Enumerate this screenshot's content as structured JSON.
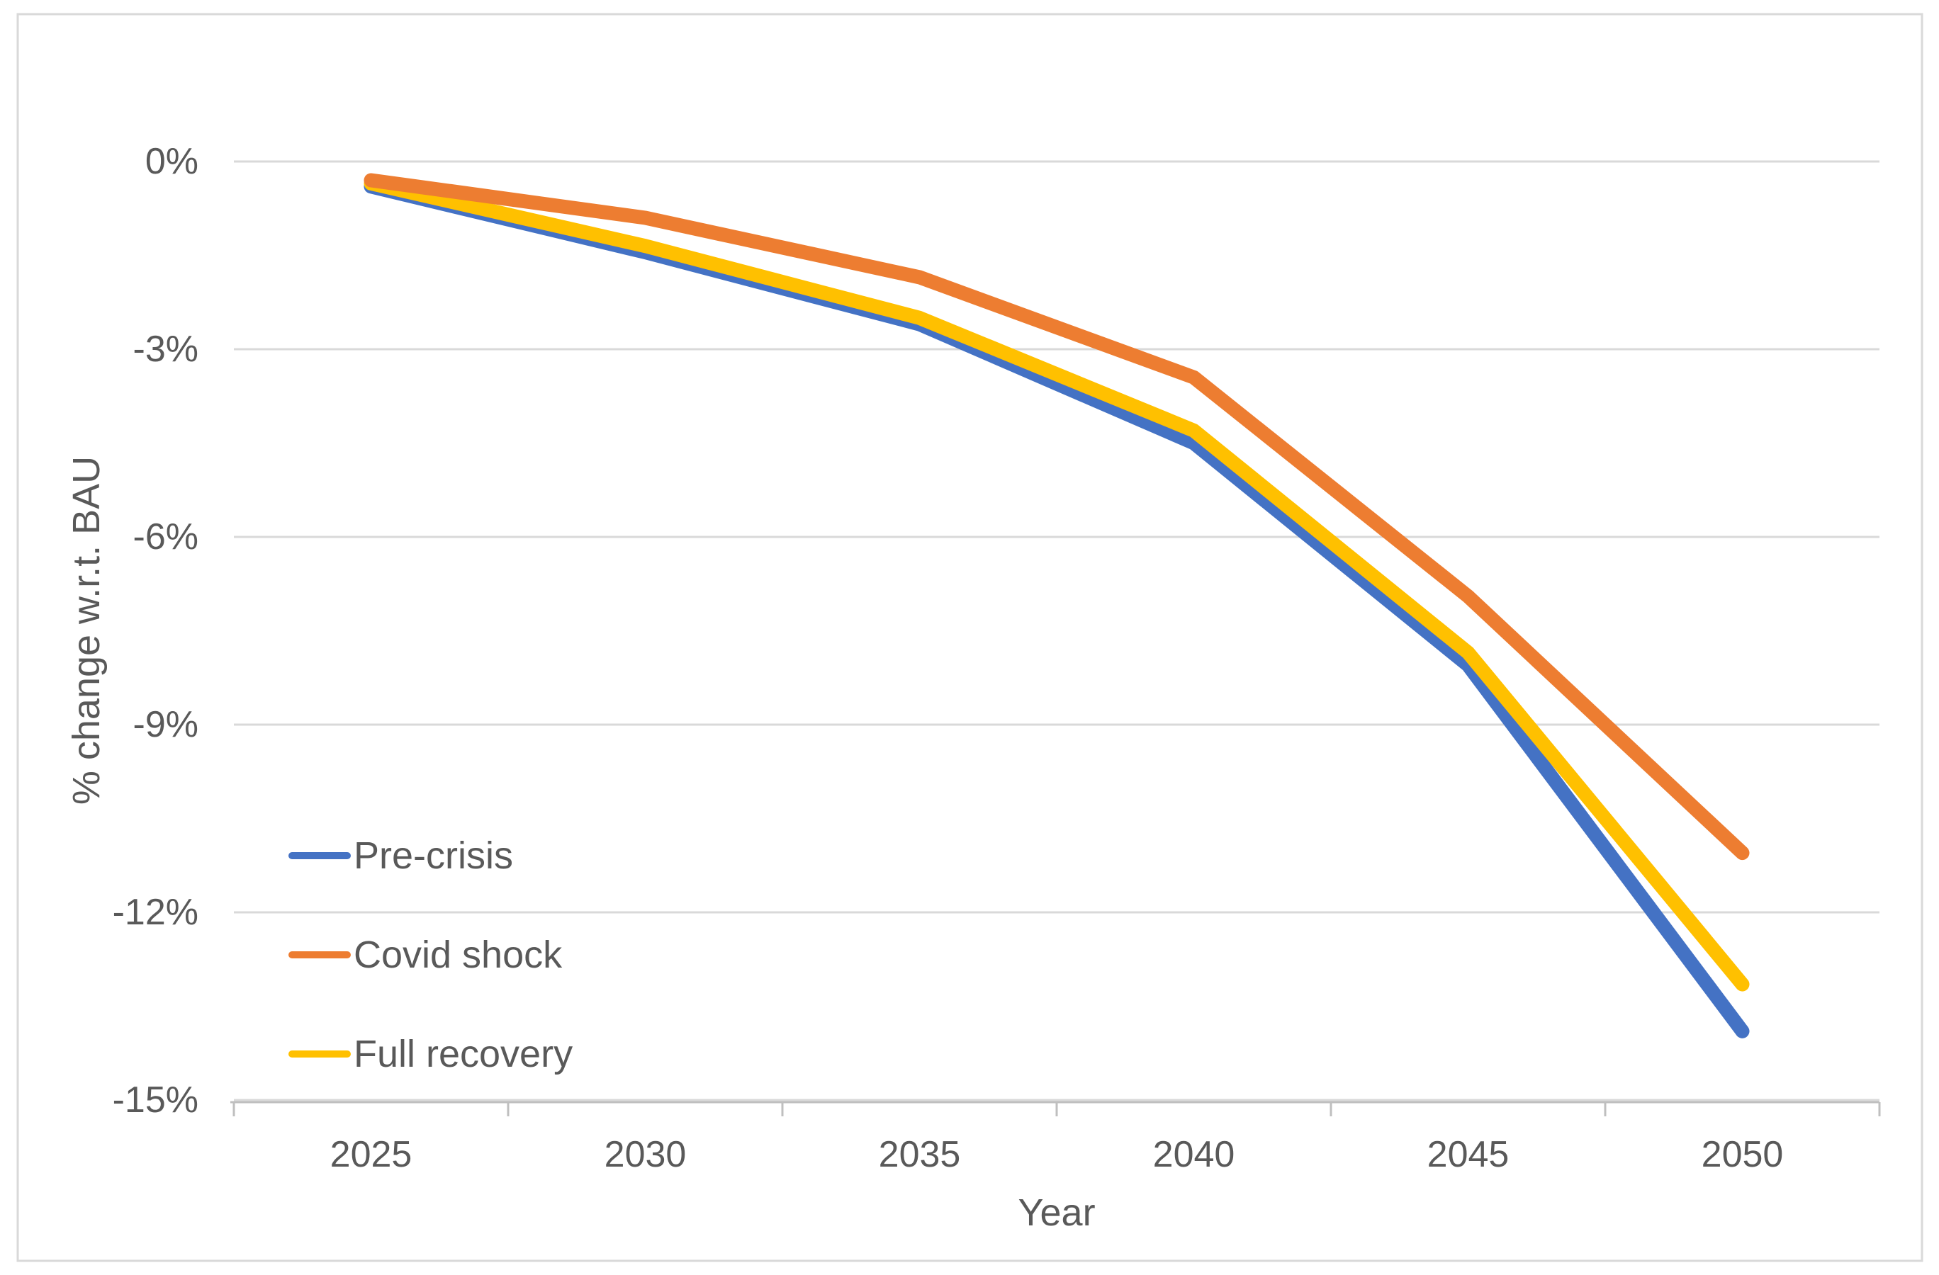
{
  "chart_data": {
    "type": "line",
    "title": "",
    "xlabel": "Year",
    "ylabel": "% change w.r.t. BAU",
    "x": [
      "2025",
      "2030",
      "2035",
      "2040",
      "2045",
      "2050"
    ],
    "series": [
      {
        "name": "Pre-crisis",
        "color": "#4472C4",
        "values": [
          -0.4,
          -1.45,
          -2.6,
          -4.5,
          -8.05,
          -13.9
        ]
      },
      {
        "name": "Covid shock",
        "color": "#ED7D31",
        "values": [
          -0.3,
          -0.9,
          -1.85,
          -3.45,
          -6.95,
          -11.05
        ]
      },
      {
        "name": "Full recovery",
        "color": "#FFC000",
        "values": [
          -0.35,
          -1.35,
          -2.5,
          -4.3,
          -7.85,
          -13.15
        ]
      }
    ],
    "ylim": [
      -15,
      0
    ],
    "yticks": [
      0,
      -3,
      -6,
      -9,
      -12,
      -15
    ],
    "ytick_labels": [
      "0%",
      "-3%",
      "-6%",
      "-9%",
      "-12%",
      "-15%"
    ],
    "grid": "horizontal",
    "legend_position": "inside-bottom-left",
    "legend_items": [
      "Pre-crisis",
      "Covid shock",
      "Full recovery"
    ],
    "gridline_color": "#D9D9D9",
    "axis_line_color": "#BFBFBF",
    "text_color": "#595959"
  }
}
